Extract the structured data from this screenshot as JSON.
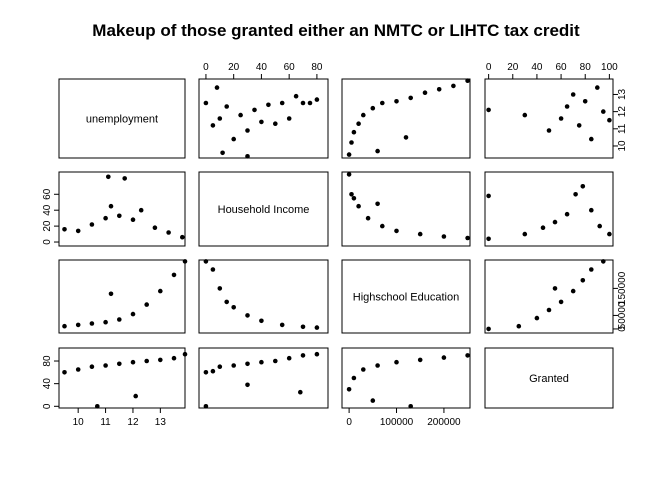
{
  "chart_data": {
    "type": "scatter",
    "subtype": "scatterplot-matrix",
    "title": "Makeup of those granted either an NMTC or LIHTC tax credit",
    "variables": [
      "unemployment",
      "Household Income",
      "Highschool Education",
      "Granted"
    ],
    "axes": {
      "unemployment": {
        "range": [
          9.3,
          13.9
        ],
        "ticks": [
          "10",
          "11",
          "12",
          "13"
        ],
        "ticks_right": [
          "10",
          "11",
          "12",
          "13"
        ]
      },
      "Household Income": {
        "range": [
          -5,
          88
        ],
        "ticks": [
          "0",
          "20",
          "40",
          "60"
        ],
        "ticks_top": [
          "0",
          "20",
          "40",
          "60",
          "80"
        ]
      },
      "Highschool Education": {
        "range": [
          -15000,
          255000
        ],
        "ticks": [
          "0",
          "100000",
          "200000"
        ],
        "ticks_right": [
          "0",
          "50000",
          "150000"
        ]
      },
      "Granted": {
        "range": [
          -3,
          103
        ],
        "ticks": [
          "0",
          "40",
          "80"
        ],
        "ticks_top": [
          "0",
          "20",
          "40",
          "60",
          "80",
          "100"
        ]
      }
    },
    "panels_shown": [
      {
        "row": "unemployment",
        "col": "Household Income",
        "points": [
          [
            0,
            12.5
          ],
          [
            5,
            11.2
          ],
          [
            10,
            11.6
          ],
          [
            15,
            12.3
          ],
          [
            20,
            10.4
          ],
          [
            25,
            11.8
          ],
          [
            30,
            10.9
          ],
          [
            35,
            12.1
          ],
          [
            40,
            11.4
          ],
          [
            45,
            12.4
          ],
          [
            50,
            11.3
          ],
          [
            55,
            12.5
          ],
          [
            60,
            11.6
          ],
          [
            65,
            12.9
          ],
          [
            70,
            12.5
          ],
          [
            75,
            12.5
          ],
          [
            80,
            12.7
          ],
          [
            12,
            9.6
          ],
          [
            30,
            9.4
          ],
          [
            8,
            13.4
          ]
        ]
      },
      {
        "row": "unemployment",
        "col": "Highschool Education",
        "points": [
          [
            0,
            9.5
          ],
          [
            5000,
            10.2
          ],
          [
            10000,
            10.8
          ],
          [
            20000,
            11.3
          ],
          [
            30000,
            11.8
          ],
          [
            50000,
            12.2
          ],
          [
            70000,
            12.5
          ],
          [
            100000,
            12.6
          ],
          [
            130000,
            12.8
          ],
          [
            160000,
            13.1
          ],
          [
            190000,
            13.3
          ],
          [
            220000,
            13.5
          ],
          [
            250000,
            13.8
          ],
          [
            60000,
            9.7
          ],
          [
            120000,
            10.5
          ]
        ]
      },
      {
        "row": "unemployment",
        "col": "Granted",
        "points": [
          [
            0,
            12.1
          ],
          [
            30,
            11.8
          ],
          [
            50,
            10.9
          ],
          [
            60,
            11.6
          ],
          [
            65,
            12.3
          ],
          [
            70,
            13.0
          ],
          [
            75,
            11.2
          ],
          [
            80,
            12.6
          ],
          [
            85,
            10.4
          ],
          [
            90,
            13.4
          ],
          [
            95,
            12.0
          ],
          [
            100,
            11.5
          ]
        ]
      },
      {
        "row": "Household Income",
        "col": "unemployment",
        "points": [
          [
            9.5,
            16
          ],
          [
            10,
            14
          ],
          [
            10.5,
            22
          ],
          [
            11,
            30
          ],
          [
            11.2,
            45
          ],
          [
            11.5,
            33
          ],
          [
            12,
            28
          ],
          [
            12.3,
            40
          ],
          [
            12.8,
            18
          ],
          [
            13.3,
            12
          ],
          [
            13.8,
            6
          ],
          [
            11.1,
            82
          ],
          [
            11.7,
            80
          ]
        ]
      },
      {
        "row": "Household Income",
        "col": "Highschool Education",
        "points": [
          [
            0,
            85
          ],
          [
            5000,
            60
          ],
          [
            10000,
            55
          ],
          [
            20000,
            45
          ],
          [
            40000,
            30
          ],
          [
            70000,
            20
          ],
          [
            100000,
            14
          ],
          [
            150000,
            10
          ],
          [
            200000,
            7
          ],
          [
            250000,
            5
          ],
          [
            60000,
            48
          ]
        ]
      },
      {
        "row": "Household Income",
        "col": "Granted",
        "points": [
          [
            0,
            58
          ],
          [
            0,
            4
          ],
          [
            30,
            10
          ],
          [
            45,
            18
          ],
          [
            55,
            25
          ],
          [
            65,
            35
          ],
          [
            72,
            60
          ],
          [
            78,
            70
          ],
          [
            85,
            40
          ],
          [
            92,
            20
          ],
          [
            100,
            10
          ]
        ]
      },
      {
        "row": "Highschool Education",
        "col": "unemployment",
        "points": [
          [
            9.5,
            10000
          ],
          [
            10,
            15000
          ],
          [
            10.5,
            20000
          ],
          [
            11,
            25000
          ],
          [
            11.5,
            35000
          ],
          [
            12,
            55000
          ],
          [
            12.5,
            90000
          ],
          [
            13,
            140000
          ],
          [
            13.5,
            200000
          ],
          [
            13.9,
            250000
          ],
          [
            11.2,
            130000
          ]
        ]
      },
      {
        "row": "Highschool Education",
        "col": "Household Income",
        "points": [
          [
            0,
            250000
          ],
          [
            5,
            220000
          ],
          [
            10,
            150000
          ],
          [
            15,
            100000
          ],
          [
            20,
            80000
          ],
          [
            30,
            50000
          ],
          [
            40,
            30000
          ],
          [
            55,
            15000
          ],
          [
            70,
            8000
          ],
          [
            80,
            5000
          ]
        ]
      },
      {
        "row": "Highschool Education",
        "col": "Granted",
        "points": [
          [
            0,
            0
          ],
          [
            25,
            10000
          ],
          [
            40,
            40000
          ],
          [
            50,
            70000
          ],
          [
            60,
            100000
          ],
          [
            70,
            140000
          ],
          [
            78,
            180000
          ],
          [
            85,
            220000
          ],
          [
            95,
            250000
          ],
          [
            55,
            150000
          ]
        ]
      },
      {
        "row": "Granted",
        "col": "unemployment",
        "points": [
          [
            9.5,
            60
          ],
          [
            10,
            65
          ],
          [
            10.5,
            70
          ],
          [
            11,
            72
          ],
          [
            11.5,
            75
          ],
          [
            12,
            78
          ],
          [
            12.5,
            80
          ],
          [
            13,
            82
          ],
          [
            13.5,
            85
          ],
          [
            13.9,
            92
          ],
          [
            12.1,
            18
          ],
          [
            10.7,
            0
          ]
        ]
      },
      {
        "row": "Granted",
        "col": "Household Income",
        "points": [
          [
            0,
            60
          ],
          [
            5,
            62
          ],
          [
            10,
            70
          ],
          [
            20,
            72
          ],
          [
            30,
            75
          ],
          [
            40,
            78
          ],
          [
            50,
            80
          ],
          [
            60,
            85
          ],
          [
            70,
            90
          ],
          [
            80,
            92
          ],
          [
            30,
            38
          ],
          [
            68,
            25
          ],
          [
            0,
            0
          ]
        ]
      },
      {
        "row": "Granted",
        "col": "Highschool Education",
        "points": [
          [
            0,
            30
          ],
          [
            10000,
            50
          ],
          [
            30000,
            65
          ],
          [
            60000,
            72
          ],
          [
            100000,
            78
          ],
          [
            150000,
            82
          ],
          [
            200000,
            86
          ],
          [
            250000,
            90
          ],
          [
            50000,
            10
          ],
          [
            130000,
            0
          ]
        ]
      }
    ],
    "grid": false,
    "legend": "none",
    "point_color": "#000000"
  }
}
